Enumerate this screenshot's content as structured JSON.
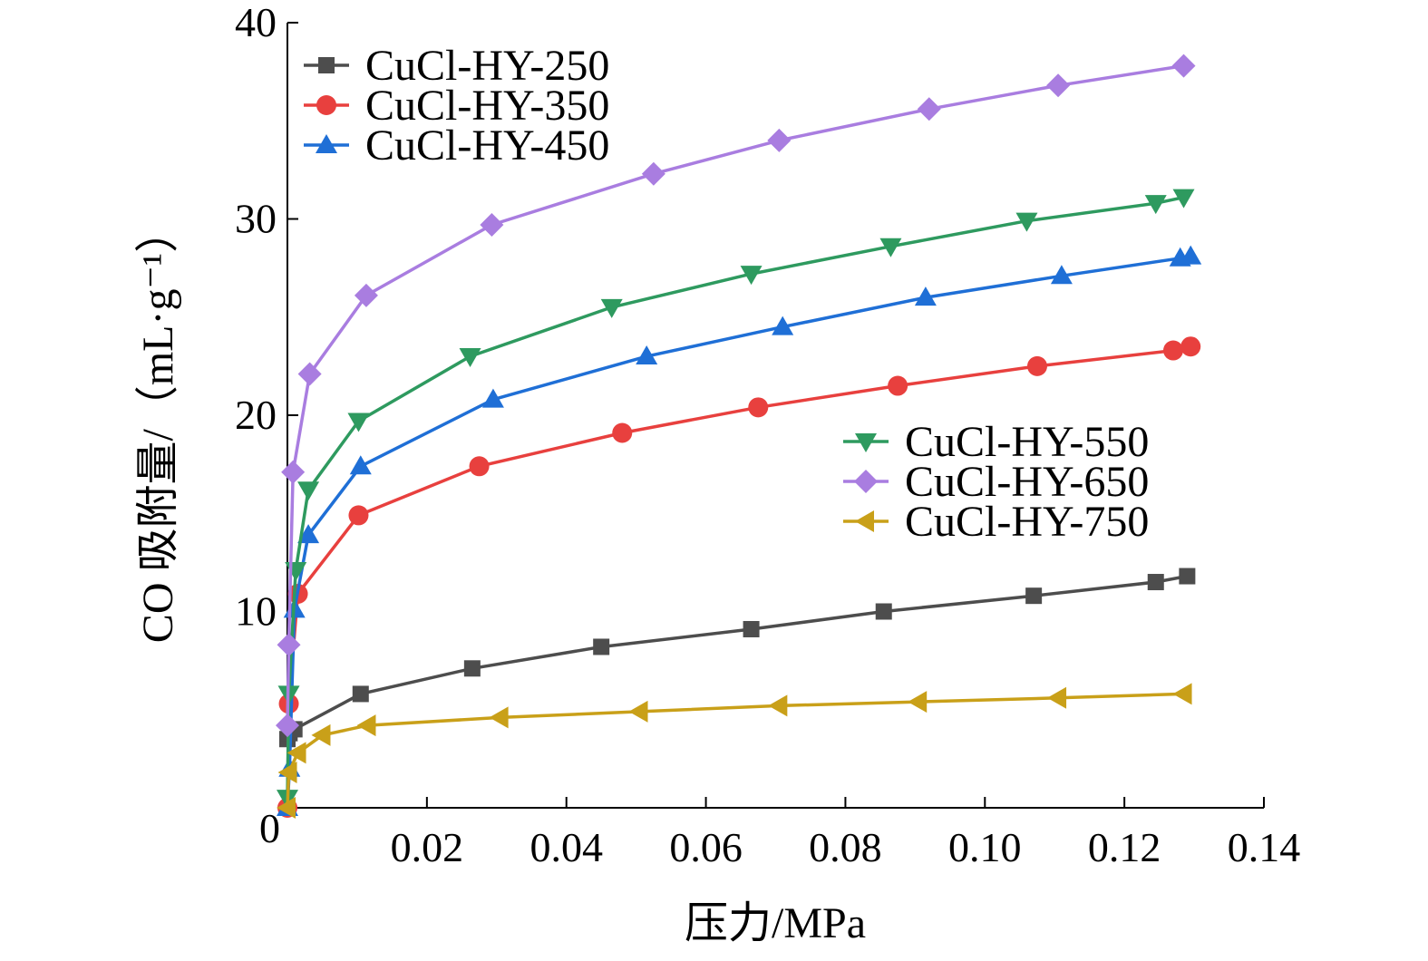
{
  "chart_data": {
    "type": "line",
    "title": "",
    "xlabel": "压力/MPa",
    "ylabel": "CO 吸附量/（mL·g⁻¹）",
    "xlim": [
      0,
      0.14
    ],
    "ylim": [
      0,
      40
    ],
    "x_ticks": [
      "0.02",
      "0.04",
      "0.06",
      "0.08",
      "0.10",
      "0.12",
      "0.14"
    ],
    "y_ticks": [
      "0",
      "10",
      "20",
      "30",
      "40"
    ],
    "grid": false,
    "legend_placement": "top-left and middle-right (two groups)",
    "series": [
      {
        "name": "CuCl-HY-250",
        "color": "#4d4d4d",
        "marker": "square",
        "x": [
          0.0,
          0.0003,
          0.001,
          0.0105,
          0.0265,
          0.045,
          0.0665,
          0.0855,
          0.107,
          0.1245,
          0.129
        ],
        "y": [
          3.5,
          3.8,
          4.0,
          5.8,
          7.1,
          8.2,
          9.1,
          10.0,
          10.8,
          11.5,
          11.8
        ]
      },
      {
        "name": "CuCl-HY-350",
        "color": "#e8403e",
        "marker": "circle",
        "x": [
          0.0,
          0.0002,
          0.0015,
          0.0102,
          0.0275,
          0.048,
          0.0675,
          0.0875,
          0.1075,
          0.127,
          0.1295
        ],
        "y": [
          0.0,
          5.3,
          10.9,
          14.9,
          17.4,
          19.1,
          20.4,
          21.5,
          22.5,
          23.3,
          23.5
        ]
      },
      {
        "name": "CuCl-HY-450",
        "color": "#1f6fd6",
        "marker": "triangle-up",
        "x": [
          0.0,
          0.0003,
          0.001,
          0.003,
          0.0105,
          0.0295,
          0.0515,
          0.071,
          0.0915,
          0.111,
          0.128,
          0.1295
        ],
        "y": [
          0.0,
          2.0,
          10.1,
          13.9,
          17.4,
          20.8,
          23.0,
          24.5,
          26.0,
          27.1,
          28.0,
          28.1
        ]
      },
      {
        "name": "CuCl-HY-550",
        "color": "#2e9a5f",
        "marker": "triangle-down",
        "x": [
          0.0,
          0.0002,
          0.0012,
          0.003,
          0.0102,
          0.0262,
          0.0465,
          0.0665,
          0.0865,
          0.106,
          0.1245,
          0.1285
        ],
        "y": [
          0.5,
          5.8,
          12.1,
          16.2,
          19.7,
          23.0,
          25.5,
          27.2,
          28.6,
          29.9,
          30.8,
          31.1
        ]
      },
      {
        "name": "CuCl-HY-650",
        "color": "#a97de0",
        "marker": "diamond",
        "x": [
          0.0,
          0.0002,
          0.0008,
          0.0032,
          0.0113,
          0.0293,
          0.0525,
          0.0705,
          0.092,
          0.1105,
          0.1285
        ],
        "y": [
          4.2,
          8.3,
          17.1,
          22.1,
          26.1,
          29.7,
          32.3,
          34.0,
          35.6,
          36.8,
          37.8
        ]
      },
      {
        "name": "CuCl-HY-750",
        "color": "#c9a019",
        "marker": "triangle-left",
        "x": [
          0.0,
          0.0002,
          0.0015,
          0.005,
          0.0115,
          0.0305,
          0.0505,
          0.0705,
          0.0905,
          0.1105,
          0.1285
        ],
        "y": [
          0.0,
          1.8,
          2.8,
          3.7,
          4.2,
          4.6,
          4.9,
          5.2,
          5.4,
          5.6,
          5.8
        ]
      }
    ]
  }
}
